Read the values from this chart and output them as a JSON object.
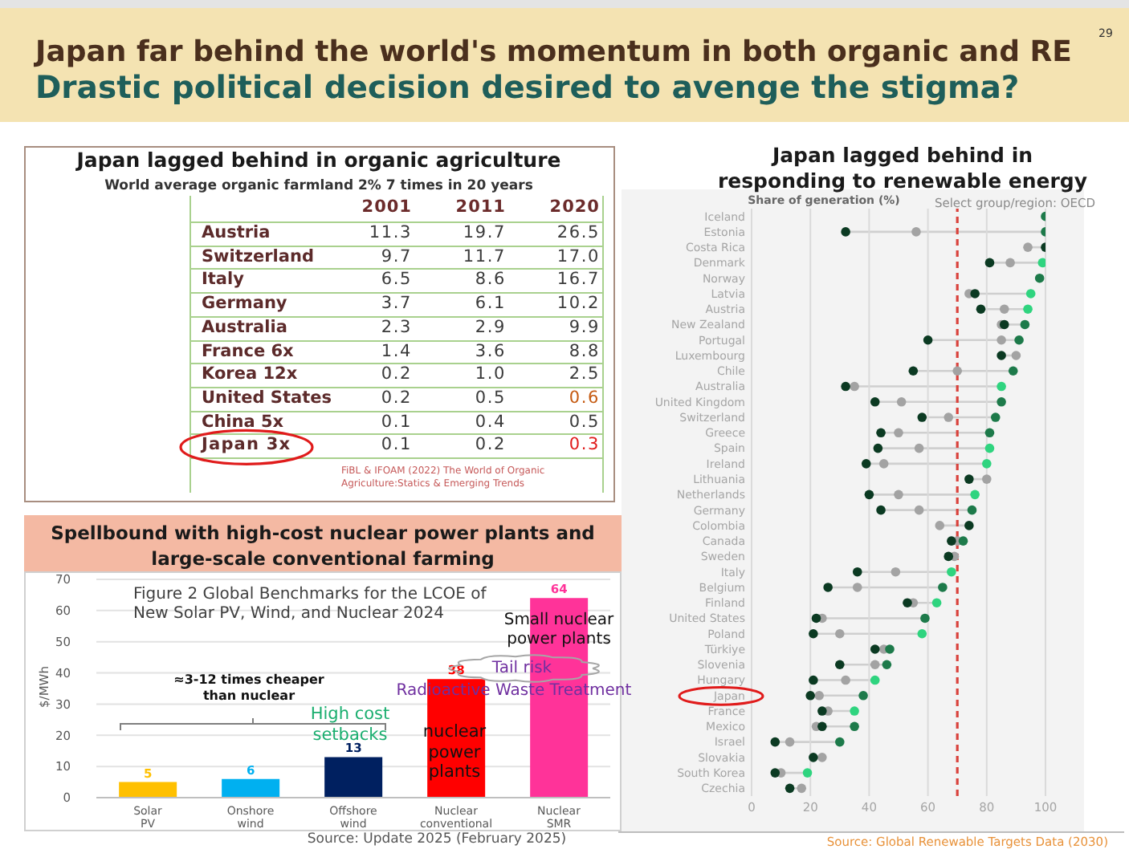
{
  "chart_data": [
    {
      "type": "other",
      "title": "Japan far behind the world's momentum in both organic and RE",
      "subtitle": "Drastic political decision desired to avenge the stigma?",
      "annotations": [
        "29"
      ]
    },
    {
      "type": "other",
      "title": "Japan lagged behind in organic agriculture",
      "subtitle": "World average organic farmland 2% 7 times in 20 years",
      "categories": [
        "Austria",
        "Switzerland",
        "Italy",
        "Germany",
        "Australia",
        "France 6x",
        "Korea 12x",
        "United States",
        "China 5x",
        "Japan 3x"
      ],
      "series": [
        {
          "name": "2001",
          "values": [
            11.3,
            9.7,
            6.5,
            3.7,
            2.3,
            1.4,
            0.2,
            0.2,
            0.1,
            0.1
          ]
        },
        {
          "name": "2011",
          "values": [
            19.7,
            11.7,
            8.6,
            6.1,
            2.9,
            3.6,
            1.0,
            0.5,
            0.4,
            0.2
          ],
          "value_labels": [
            "19.7",
            "11.7",
            "8.6",
            "6.1",
            "2.9",
            "3.6",
            "1.0",
            "0.5",
            "0.4",
            "0.2"
          ]
        },
        {
          "name": "2020",
          "colors": [
            "#3a3a3a",
            "#3a3a3a",
            "#3a3a3a",
            "#3a3a3a",
            "#3a3a3a",
            "#3a3a3a",
            "#3a3a3a",
            "#c55a11",
            "#3a3a3a",
            "#e01b1b"
          ],
          "values": [
            26.5,
            17.0,
            16.7,
            10.2,
            9.9,
            8.8,
            2.5,
            0.6,
            0.5,
            0.3
          ],
          "value_labels": [
            "26.5",
            "17.0",
            "16.7",
            "10.2",
            "9.9",
            "8.8",
            "2.5",
            "0.6",
            "0.5",
            "0.3"
          ]
        }
      ],
      "data_labels": true,
      "annotations": [
        "FiBL & IFOAM (2022) The World of Organic Agriculture:Statics & Emerging Trends"
      ]
    },
    {
      "type": "bar",
      "title": "Spellbound with high-cost nuclear power plants and large-scale conventional farming",
      "subtitle": "Figure 2 Global Benchmarks for the LCOE of New Solar PV, Wind, and Nuclear 2024",
      "ylabel": "$/MWh",
      "categories": [
        "Solar PV",
        "Onshore wind",
        "Offshore wind",
        "Nuclear conventional",
        "Nuclear SMR"
      ],
      "values": [
        5,
        6,
        13,
        38,
        64
      ],
      "colors": [
        "#ffc000",
        "#00b0f0",
        "#002060",
        "#ff0000",
        "#ff3399"
      ],
      "data_labels": true,
      "ylim": [
        0,
        70
      ],
      "yticks": [
        0,
        10,
        20,
        30,
        40,
        50,
        60,
        70
      ],
      "grid": "y",
      "annotations": [
        "≈3-12 times cheaper than nuclear",
        "High cost setbacks",
        "nuclear power plants",
        "Small nuclear power plants",
        "Tail risk",
        "Radioactive Waste Treatment",
        "Source: Update 2025 (February 2025)"
      ]
    },
    {
      "type": "scatter",
      "orientation": "horizontal",
      "title": "Japan lagged behind in responding to renewable energy",
      "xlabel": "Share of generation (%)",
      "categories": [
        "Iceland",
        "Estonia",
        "Costa Rica",
        "Denmark",
        "Norway",
        "Latvia",
        "Austria",
        "New Zealand",
        "Portugal",
        "Luxembourg",
        "Chile",
        "Australia",
        "United Kingdom",
        "Switzerland",
        "Greece",
        "Spain",
        "Ireland",
        "Lithuania",
        "Netherlands",
        "Germany",
        "Colombia",
        "Canada",
        "Sweden",
        "Italy",
        "Belgium",
        "Finland",
        "United States",
        "Poland",
        "Türkiye",
        "Slovenia",
        "Hungary",
        "Japan",
        "France",
        "Mexico",
        "Israel",
        "Slovakia",
        "South Korea",
        "Czechia"
      ],
      "series": [
        {
          "color": "#a3a3a3",
          "values": [
            null,
            56,
            94,
            88,
            null,
            74,
            86,
            85,
            85,
            90,
            70,
            35,
            51,
            67,
            50,
            57,
            45,
            80,
            50,
            57,
            64,
            70,
            69,
            49,
            36,
            55,
            24,
            30,
            45,
            42,
            32,
            23,
            26,
            22,
            13,
            24,
            10,
            17
          ]
        },
        {
          "color": "#0b3a22",
          "values": [
            null,
            32,
            100,
            81,
            null,
            76,
            78,
            86,
            60,
            85,
            55,
            32,
            42,
            58,
            44,
            43,
            39,
            74,
            40,
            44,
            74,
            68,
            67,
            36,
            26,
            53,
            22,
            21,
            42,
            30,
            21,
            20,
            24,
            24,
            8,
            21,
            8,
            13
          ]
        },
        {
          "colors": [
            "#1d7a4a",
            "#1d7a4a",
            null,
            "#2fd47f",
            "#1d7a4a",
            "#2fd47f",
            "#2fd47f",
            "#1d7a4a",
            "#1d7a4a",
            null,
            "#1d7a4a",
            "#2fd47f",
            "#1d7a4a",
            "#1d7a4a",
            "#1d7a4a",
            "#2fd47f",
            "#2fd47f",
            null,
            "#2fd47f",
            "#1d7a4a",
            null,
            "#1d7a4a",
            null,
            "#2fd47f",
            "#1d7a4a",
            "#2fd47f",
            "#1d7a4a",
            "#2fd47f",
            "#1d7a4a",
            "#1d7a4a",
            "#2fd47f",
            "#1d7a4a",
            "#2fd47f",
            "#1d7a4a",
            "#1d7a4a",
            null,
            "#2fd47f",
            null
          ],
          "values": [
            100,
            100,
            null,
            99,
            98,
            95,
            94,
            93,
            91,
            null,
            89,
            85,
            85,
            83,
            81,
            81,
            80,
            null,
            76,
            75,
            null,
            72,
            null,
            68,
            65,
            63,
            59,
            58,
            47,
            46,
            42,
            38,
            35,
            35,
            30,
            null,
            19,
            null
          ]
        }
      ],
      "xlim": [
        0,
        100
      ],
      "xticks": [
        0,
        20,
        40,
        60,
        80,
        100
      ],
      "grid": "x",
      "marker": "circle",
      "ref_lines": [
        {
          "axis": "x",
          "value": 70,
          "color": "#d9413b",
          "line_style": "dashed"
        }
      ],
      "annotations": [
        "Select group/region: OECD",
        "Source: Global Renewable Targets Data (2030)"
      ]
    }
  ]
}
